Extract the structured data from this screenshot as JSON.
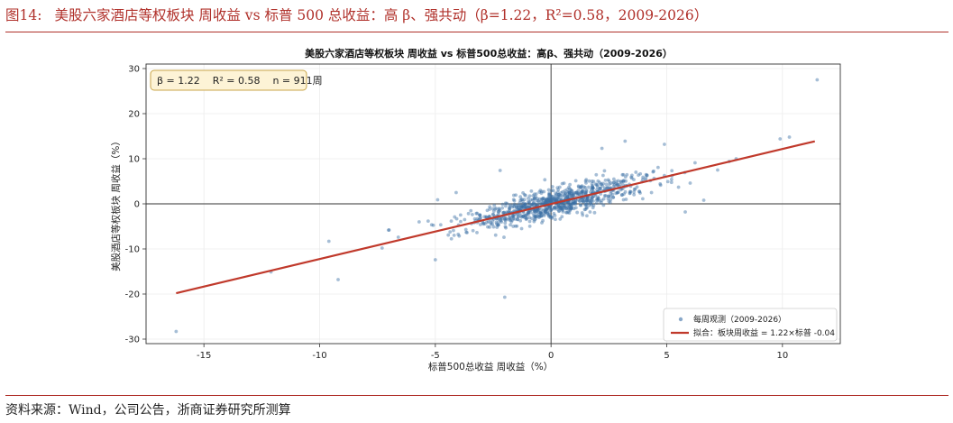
{
  "figure": {
    "number": "图14:",
    "caption": "美股六家酒店等权板块 周收益 vs 标普 500 总收益：高 β、强共动（β=1.22，R²=0.58，2009-2026）"
  },
  "source": "资料来源：Wind，公司公告，浙商证券研究所测算",
  "chart_data": {
    "type": "scatter",
    "title": "美股六家酒店等权板块 周收益 vs 标普500总收益：高β、强共动（2009-2026）",
    "xlabel": "标普500总收益 周收益（%）",
    "ylabel": "美股酒店等权板块 周收益（%）",
    "xlim": [
      -17.5,
      12.5
    ],
    "ylim": [
      -31,
      31
    ],
    "xticks": [
      -15,
      -10,
      -5,
      0,
      5,
      10
    ],
    "yticks": [
      -30,
      -20,
      -10,
      0,
      10,
      20,
      30
    ],
    "grid": true,
    "stats_box": "β = 1.22    R² = 0.58    n = 911周",
    "legend": {
      "position": "bottom-right",
      "entries": [
        "每周观测（2009-2026）",
        "拟合：板块周收益 = 1.22×标普 -0.04"
      ]
    },
    "fit_line": {
      "slope": 1.22,
      "intercept": -0.04,
      "x_range": [
        -16.2,
        11.4
      ]
    },
    "point_count": 911,
    "notable_points": [
      {
        "x": -16.2,
        "y": -28.3
      },
      {
        "x": 11.5,
        "y": 27.5
      },
      {
        "x": -2.0,
        "y": -20.7
      },
      {
        "x": -9.2,
        "y": -16.8
      },
      {
        "x": -12.1,
        "y": -15.1
      },
      {
        "x": -9.6,
        "y": -8.3
      },
      {
        "x": 9.9,
        "y": 14.4
      },
      {
        "x": 10.3,
        "y": 14.8
      },
      {
        "x": 7.2,
        "y": 7.5
      },
      {
        "x": 4.9,
        "y": 13.2
      },
      {
        "x": 3.2,
        "y": 13.9
      },
      {
        "x": 2.2,
        "y": 12.3
      },
      {
        "x": -5.0,
        "y": -12.4
      },
      {
        "x": -2.2,
        "y": 7.4
      },
      {
        "x": -4.1,
        "y": 2.5
      },
      {
        "x": -4.9,
        "y": 0.9
      },
      {
        "x": 6.6,
        "y": 0.8
      },
      {
        "x": 5.8,
        "y": -1.8
      },
      {
        "x": -7.3,
        "y": -9.8
      },
      {
        "x": -7.0,
        "y": -5.8
      },
      {
        "x": -6.6,
        "y": -7.4
      },
      {
        "x": -5.7,
        "y": -4.0
      },
      {
        "x": 7.7,
        "y": 9.4
      },
      {
        "x": 8.0,
        "y": 10.0
      }
    ],
    "colors": {
      "points": "#3a6ea5",
      "fit": "#c0392b",
      "caption": "#b0302a",
      "stats_fill": "#fdf3d6",
      "stats_border": "#c9a64a"
    }
  }
}
